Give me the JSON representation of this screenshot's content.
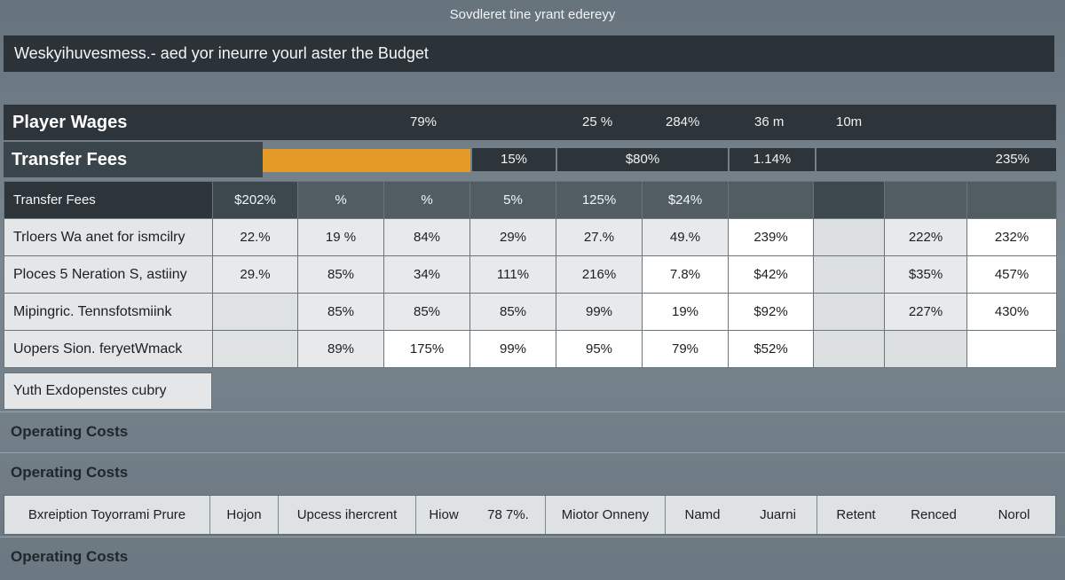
{
  "app": {
    "title": "Sovdleret tine yrant edereyy",
    "banner": "Weskyihuvesmess.- aed yor ineurre yourl aster the Budget"
  },
  "player_wages": {
    "label": "Player Wages",
    "values": [
      "79%",
      "25 %",
      "284%",
      "36 m",
      "10m"
    ]
  },
  "transfer_fees_bar": {
    "label": "Transfer Fees",
    "progress_percent": 100,
    "segments": [
      "15%",
      "$80%",
      "1.14%",
      "235%"
    ],
    "accent_color": "#e39a26"
  },
  "table": {
    "headers": [
      "Transfer Fees",
      "$202%",
      "%",
      "%",
      "5%",
      "125%",
      "$24%",
      "",
      "",
      "",
      ""
    ],
    "rows": [
      {
        "label": "Trloers Wa anet for ismcilry",
        "cells": [
          "22.%",
          "19 %",
          "84%",
          "29%",
          "27.%",
          "49.%",
          "239%",
          "",
          "222%",
          "232%"
        ]
      },
      {
        "label": "Ploces 5 Neration S, astiiny",
        "cells": [
          "29.%",
          "85%",
          "34%",
          "111%",
          "216%",
          "7.8%",
          "$42%",
          "",
          "$35%",
          "457%"
        ]
      },
      {
        "label": "Mipingric. Tennsfotsmiink",
        "cells": [
          "",
          "85%",
          "85%",
          "85%",
          "99%",
          "19%",
          "$92%",
          "",
          "227%",
          "430%"
        ]
      },
      {
        "label": "Uopers Sion. feryetWmack",
        "cells": [
          "",
          "89%",
          "175%",
          "99%",
          "95%",
          "79%",
          "$52%",
          "",
          "",
          ""
        ]
      }
    ]
  },
  "yuth_row": {
    "label": "Yuth Exdopenstes cubry"
  },
  "sections": {
    "operating_costs_1": "Operating Costs",
    "operating_costs_2": "Operating Costs",
    "operating_costs_3": "Operating Costs"
  },
  "bottom_row": {
    "cells": [
      "Bxreiption Toyorrami Prure",
      "Hojon",
      "Upcess ihercrent",
      "Hiow",
      "78 7%.",
      "Miotor Onneny",
      "Namd",
      "Juarni",
      "Retent",
      "Renced",
      "Norol"
    ]
  }
}
